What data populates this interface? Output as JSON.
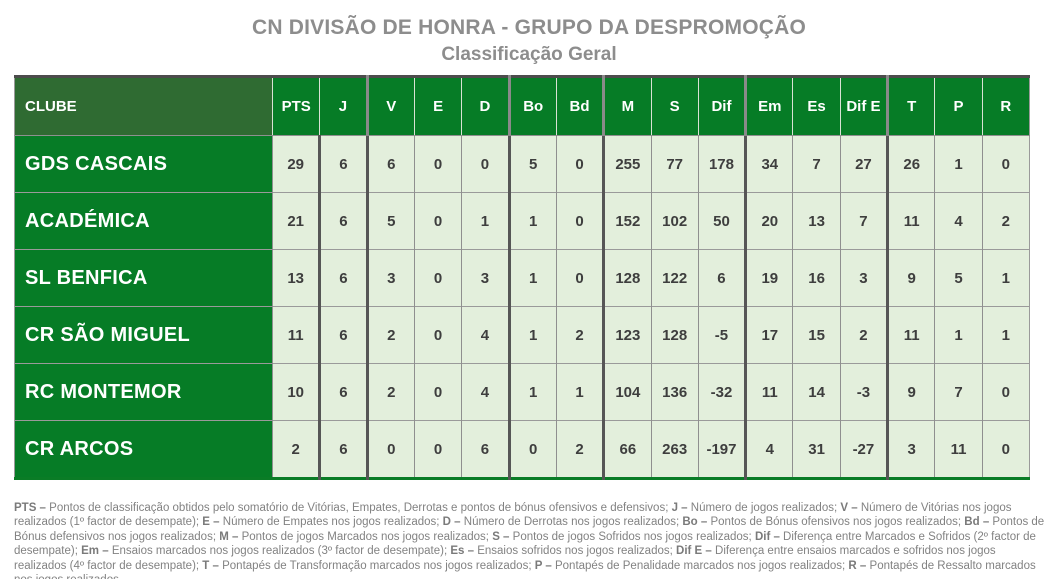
{
  "title": "CN DIVISÃO DE HONRA - GRUPO DA DESPROMOÇÃO",
  "subtitle": "Classificação Geral",
  "colors": {
    "bright_green": "#067c26",
    "clube_header_green": "#2f6b32",
    "row_light_green": "#e3efdc",
    "divider_gray": "#8f8f8f",
    "group_divider_dark": "#565656",
    "top_border_dark": "#4c4c4c",
    "bottom_border_green": "#0a7c26",
    "title_gray": "#8d8d8d",
    "cell_text_dark": "#3e3e3e",
    "header_text_white": "#ffffff"
  },
  "table": {
    "club_header": "CLUBE",
    "stat_headers": [
      "PTS",
      "J",
      "V",
      "E",
      "D",
      "Bo",
      "Bd",
      "M",
      "S",
      "Dif",
      "Em",
      "Es",
      "Dif E",
      "T",
      "P",
      "R"
    ],
    "header_group_starts": [
      2,
      5,
      7,
      10,
      13
    ],
    "body_group_starts": [
      1,
      2,
      5,
      7,
      10,
      13
    ],
    "rows": [
      {
        "club": "GDS CASCAIS",
        "values": [
          29,
          6,
          6,
          0,
          0,
          5,
          0,
          255,
          77,
          178,
          34,
          7,
          27,
          26,
          1,
          0
        ]
      },
      {
        "club": "ACADÉMICA",
        "values": [
          21,
          6,
          5,
          0,
          1,
          1,
          0,
          152,
          102,
          50,
          20,
          13,
          7,
          11,
          4,
          2
        ]
      },
      {
        "club": "SL BENFICA",
        "values": [
          13,
          6,
          3,
          0,
          3,
          1,
          0,
          128,
          122,
          6,
          19,
          16,
          3,
          9,
          5,
          1
        ]
      },
      {
        "club": "CR SÃO MIGUEL",
        "values": [
          11,
          6,
          2,
          0,
          4,
          1,
          2,
          123,
          128,
          -5,
          17,
          15,
          2,
          11,
          1,
          1
        ]
      },
      {
        "club": "RC MONTEMOR",
        "values": [
          10,
          6,
          2,
          0,
          4,
          1,
          1,
          104,
          136,
          -32,
          11,
          14,
          -3,
          9,
          7,
          0
        ]
      },
      {
        "club": "CR ARCOS",
        "values": [
          2,
          6,
          0,
          0,
          6,
          0,
          2,
          66,
          263,
          -197,
          4,
          31,
          -27,
          3,
          11,
          0
        ]
      }
    ]
  },
  "legend": {
    "separator": "; ",
    "entries": [
      {
        "term": "PTS",
        "desc": "Pontos de classificação obtidos pelo somatório de Vitórias, Empates, Derrotas e pontos de bónus ofensivos e defensivos"
      },
      {
        "term": "J",
        "desc": "Número de jogos realizados"
      },
      {
        "term": "V",
        "desc": "Número de Vitórias nos jogos realizados (1º factor de desempate)"
      },
      {
        "term": "E",
        "desc": "Número de Empates nos jogos realizados"
      },
      {
        "term": "D",
        "desc": "Número de Derrotas nos jogos realizados"
      },
      {
        "term": "Bo",
        "desc": "Pontos de Bónus ofensivos nos jogos realizados"
      },
      {
        "term": "Bd",
        "desc": "Pontos de Bónus defensivos nos jogos realizados"
      },
      {
        "term": "M",
        "desc": "Pontos de jogos Marcados nos jogos realizados"
      },
      {
        "term": "S",
        "desc": "Pontos de jogos Sofridos nos jogos realizados"
      },
      {
        "term": "Dif",
        "desc": "Diferença entre Marcados e Sofridos (2º factor de desempate)"
      },
      {
        "term": "Em",
        "desc": "Ensaios marcados nos jogos realizados (3º factor de desempate)"
      },
      {
        "term": "Es",
        "desc": "Ensaios sofridos nos jogos realizados"
      },
      {
        "term": "Dif E",
        "desc": "Diferença entre ensaios marcados e sofridos nos jogos realizados (4º factor de desempate)"
      },
      {
        "term": "T",
        "desc": "Pontapés de Transformação marcados nos jogos realizados"
      },
      {
        "term": "P",
        "desc": "Pontapés de Penalidade marcados nos jogos realizados"
      },
      {
        "term": "R",
        "desc": "Pontapés de Ressalto marcados nos jogos realizados"
      }
    ]
  }
}
